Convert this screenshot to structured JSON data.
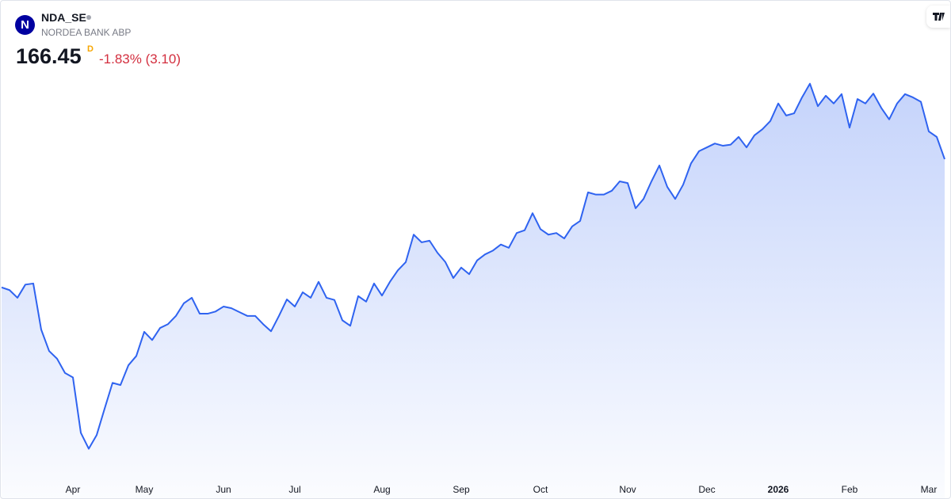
{
  "header": {
    "logo": "N",
    "symbol": "NDA_SE",
    "name": "NORDEA BANK ABP",
    "price": "166.45",
    "interval": "D",
    "change": "-1.83% (3.10)"
  },
  "chart_data": {
    "type": "area",
    "color": "#2f63f0",
    "ylim": [
      104.4,
      195.3
    ],
    "categories": [
      null,
      null,
      null,
      null,
      null,
      null,
      null,
      null,
      null,
      "Apr",
      null,
      null,
      null,
      null,
      null,
      null,
      null,
      null,
      "May",
      null,
      null,
      null,
      null,
      null,
      null,
      null,
      null,
      null,
      "Jun",
      null,
      null,
      null,
      null,
      null,
      null,
      null,
      null,
      "Jul",
      null,
      null,
      null,
      null,
      null,
      null,
      null,
      null,
      null,
      null,
      "Aug",
      null,
      null,
      null,
      null,
      null,
      null,
      null,
      null,
      null,
      "Sep",
      null,
      null,
      null,
      null,
      null,
      null,
      null,
      null,
      null,
      "Oct",
      null,
      null,
      null,
      null,
      null,
      null,
      null,
      null,
      null,
      null,
      "Nov",
      null,
      null,
      null,
      null,
      null,
      null,
      null,
      null,
      null,
      "Dec",
      null,
      null,
      null,
      null,
      null,
      null,
      null,
      null,
      "2026",
      null,
      null,
      null,
      null,
      null,
      null,
      null,
      null,
      "Feb",
      null,
      null,
      null,
      null,
      null,
      null,
      null,
      null,
      null,
      "Mar",
      null,
      null
    ],
    "values": [
      143.1,
      142.6,
      141.2,
      143.6,
      143.8,
      135.4,
      131.5,
      130.1,
      127.5,
      126.7,
      116.6,
      113.7,
      116.2,
      121.0,
      125.7,
      125.3,
      128.9,
      130.6,
      135.0,
      133.5,
      135.7,
      136.4,
      137.9,
      140.2,
      141.2,
      138.3,
      138.3,
      138.7,
      139.6,
      139.3,
      138.6,
      137.9,
      137.9,
      136.4,
      135.1,
      137.9,
      140.9,
      139.6,
      142.2,
      141.2,
      144.1,
      141.2,
      140.8,
      137.1,
      136.1,
      141.5,
      140.5,
      143.8,
      141.6,
      144.1,
      146.2,
      147.7,
      152.7,
      151.3,
      151.6,
      149.4,
      147.7,
      144.8,
      146.7,
      145.5,
      148.0,
      149.1,
      149.8,
      150.9,
      150.3,
      153.0,
      153.5,
      156.6,
      153.7,
      152.7,
      153.0,
      152.0,
      154.2,
      155.2,
      160.4,
      160.0,
      160.0,
      160.7,
      162.4,
      162.1,
      157.5,
      159.2,
      162.4,
      165.3,
      161.4,
      159.2,
      161.8,
      165.7,
      167.9,
      168.6,
      169.3,
      168.9,
      169.1,
      170.5,
      168.6,
      170.8,
      171.9,
      173.4,
      176.6,
      174.4,
      174.8,
      177.7,
      180.2,
      176.1,
      178.0,
      176.6,
      178.3,
      172.2,
      177.4,
      176.6,
      178.4,
      175.8,
      173.7,
      176.6,
      178.3,
      177.7,
      176.9,
      171.5,
      170.5,
      166.45
    ]
  }
}
